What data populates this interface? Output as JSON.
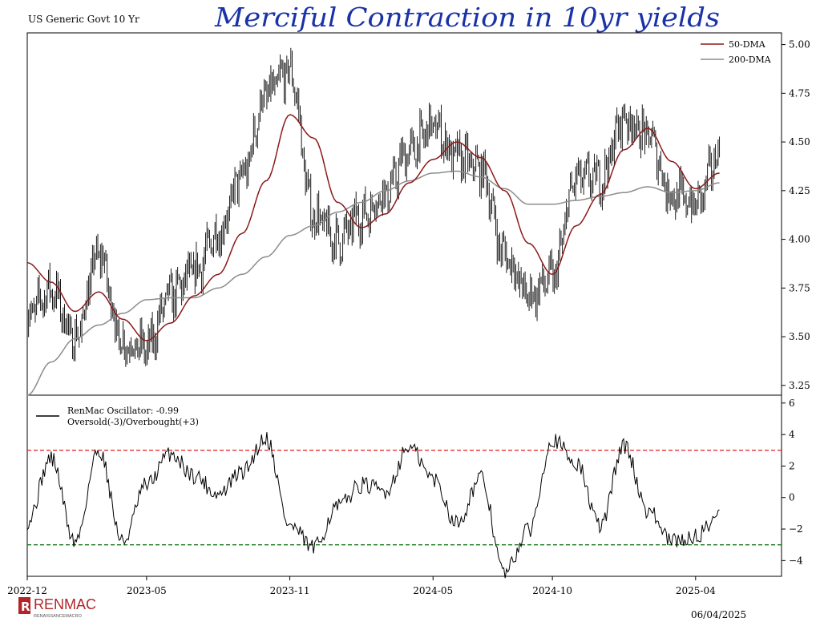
{
  "annotation": "Merciful Contraction in 10yr yields",
  "date_stamp": "06/04/2025",
  "logo": {
    "name": "RENMAC",
    "subtitle": "RENAISSANCEMACRO"
  },
  "colors": {
    "price": "#000000",
    "dma50": "#8b1a1a",
    "dma200": "#8c8c8c",
    "overbought": "#e31a1c",
    "oversold": "#1a7a1a",
    "annotation": "#1a32a8",
    "logo_red": "#b0252a"
  },
  "chart_data": [
    {
      "type": "line",
      "title": "US Generic Govt 10 Yr",
      "x_ticks": [
        "2022-12",
        "2023-05",
        "2023-11",
        "2024-05",
        "2024-10",
        "2025-04"
      ],
      "ylim": [
        3.2,
        5.06
      ],
      "y_ticks": [
        "5.00",
        "4.75",
        "4.50",
        "4.25",
        "4.00",
        "3.75",
        "3.50",
        "3.25"
      ],
      "y_tick_values": [
        5.0,
        4.75,
        4.5,
        4.25,
        4.0,
        3.75,
        3.5,
        3.25
      ],
      "legend": [
        "50-DMA",
        "200-DMA"
      ],
      "legend_position": "top-right",
      "series": [
        {
          "name": "US Generic Govt 10 Yr",
          "style": "ohlc",
          "x": [
            "2022-12",
            "2023-01",
            "2023-02",
            "2023-03",
            "2023-04",
            "2023-05",
            "2023-06",
            "2023-07",
            "2023-08",
            "2023-09",
            "2023-10",
            "2023-11",
            "2023-12",
            "2024-01",
            "2024-02",
            "2024-03",
            "2024-04",
            "2024-05",
            "2024-06",
            "2024-07",
            "2024-08",
            "2024-09",
            "2024-10",
            "2024-11",
            "2024-12",
            "2025-01",
            "2025-02",
            "2025-03",
            "2025-04",
            "2025-05"
          ],
          "values": [
            3.61,
            3.74,
            3.49,
            3.92,
            3.47,
            3.44,
            3.71,
            3.83,
            4.03,
            4.32,
            4.74,
            4.86,
            4.12,
            3.99,
            4.12,
            4.24,
            4.45,
            4.58,
            4.42,
            4.36,
            3.92,
            3.71,
            3.8,
            4.31,
            4.31,
            4.62,
            4.53,
            4.23,
            4.18,
            4.43
          ]
        },
        {
          "name": "50-DMA",
          "x": [
            "2022-12",
            "2023-01",
            "2023-02",
            "2023-03",
            "2023-04",
            "2023-05",
            "2023-06",
            "2023-07",
            "2023-08",
            "2023-09",
            "2023-10",
            "2023-11",
            "2023-12",
            "2024-01",
            "2024-02",
            "2024-03",
            "2024-04",
            "2024-05",
            "2024-06",
            "2024-07",
            "2024-08",
            "2024-09",
            "2024-10",
            "2024-11",
            "2024-12",
            "2025-01",
            "2025-02",
            "2025-03",
            "2025-04",
            "2025-05"
          ],
          "values": [
            3.88,
            3.78,
            3.63,
            3.73,
            3.59,
            3.48,
            3.57,
            3.71,
            3.82,
            4.03,
            4.3,
            4.64,
            4.52,
            4.19,
            4.06,
            4.13,
            4.29,
            4.41,
            4.5,
            4.42,
            4.25,
            3.98,
            3.82,
            4.07,
            4.23,
            4.46,
            4.57,
            4.4,
            4.26,
            4.34
          ]
        },
        {
          "name": "200-DMA",
          "x": [
            "2022-12",
            "2023-01",
            "2023-02",
            "2023-03",
            "2023-04",
            "2023-05",
            "2023-06",
            "2023-07",
            "2023-08",
            "2023-09",
            "2023-10",
            "2023-11",
            "2023-12",
            "2024-01",
            "2024-02",
            "2024-03",
            "2024-04",
            "2024-05",
            "2024-06",
            "2024-07",
            "2024-08",
            "2024-09",
            "2024-10",
            "2024-11",
            "2024-12",
            "2025-01",
            "2025-02",
            "2025-03",
            "2025-04",
            "2025-05"
          ],
          "values": [
            3.2,
            3.37,
            3.49,
            3.56,
            3.62,
            3.69,
            3.7,
            3.7,
            3.75,
            3.82,
            3.91,
            4.02,
            4.07,
            4.14,
            4.19,
            4.25,
            4.3,
            4.34,
            4.35,
            4.32,
            4.26,
            4.18,
            4.18,
            4.2,
            4.22,
            4.24,
            4.27,
            4.24,
            4.25,
            4.29
          ]
        }
      ]
    },
    {
      "type": "line",
      "title": "",
      "ylim": [
        -5.0,
        6.5
      ],
      "y_ticks": [
        "6",
        "4",
        "2",
        "0",
        "−2",
        "−4"
      ],
      "y_tick_values": [
        6,
        4,
        2,
        0,
        -2,
        -4
      ],
      "legend": [
        "RenMac Oscillator: -0.99",
        "Oversold(-3)/Overbought(+3)"
      ],
      "legend_position": "top-left",
      "reference_lines": [
        {
          "name": "Overbought",
          "value": 3,
          "style": "dashed",
          "color": "#e31a1c"
        },
        {
          "name": "Oversold",
          "value": -3,
          "style": "dashed",
          "color": "#1a7a1a"
        }
      ],
      "series": [
        {
          "name": "RenMac Oscillator",
          "x": [
            "2022-12",
            "2023-01",
            "2023-02",
            "2023-03",
            "2023-04",
            "2023-05",
            "2023-06",
            "2023-07",
            "2023-08",
            "2023-09",
            "2023-10",
            "2023-11",
            "2023-12",
            "2024-01",
            "2024-02",
            "2024-03",
            "2024-04",
            "2024-05",
            "2024-06",
            "2024-07",
            "2024-08",
            "2024-09",
            "2024-10",
            "2024-11",
            "2024-12",
            "2025-01",
            "2025-02",
            "2025-03",
            "2025-04",
            "2025-05"
          ],
          "values": [
            -1.5,
            2.5,
            -2.8,
            3.0,
            -2.8,
            0.8,
            2.8,
            1.4,
            0.2,
            1.6,
            3.8,
            -1.8,
            -3.2,
            -0.6,
            0.8,
            0.4,
            3.2,
            1.2,
            -1.6,
            1.2,
            -4.8,
            -2.1,
            3.7,
            2.2,
            -1.8,
            3.3,
            -0.8,
            -2.8,
            -2.5,
            -0.99
          ]
        }
      ]
    }
  ]
}
